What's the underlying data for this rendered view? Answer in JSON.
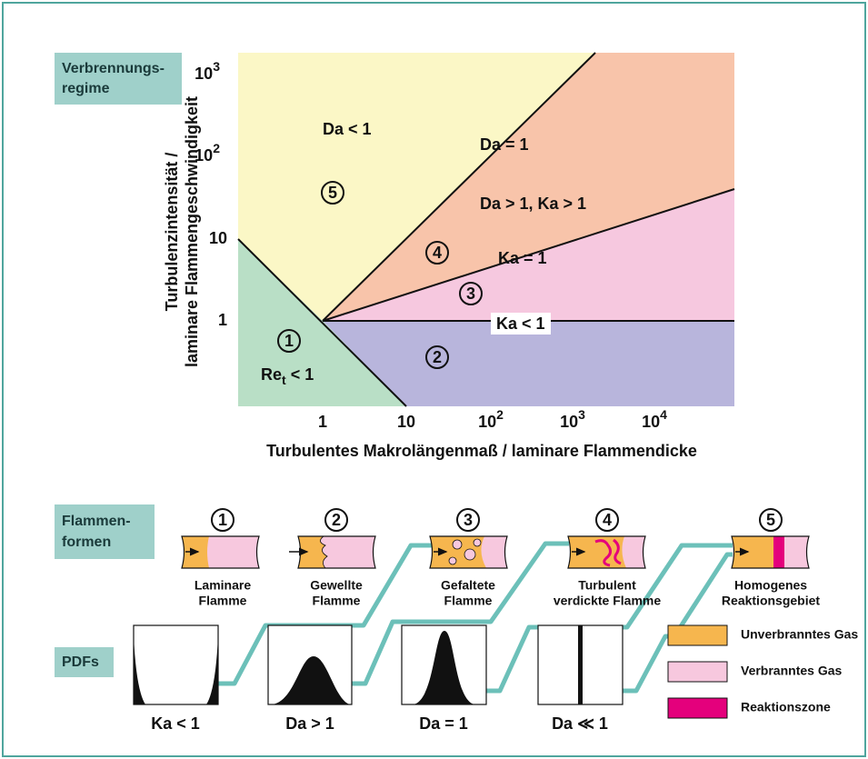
{
  "regime_diagram": {
    "label": [
      "Verbrennungs-",
      "regime"
    ],
    "y_axis_title": [
      "Turbulenzintensität /",
      "laminare Flammengeschwindigkeit"
    ],
    "x_axis_title": "Turbulentes Makrolängenmaß / laminare Flammendicke",
    "y_ticks": [
      {
        "base": "1"
      },
      {
        "base": "10"
      },
      {
        "base": "10",
        "sup": "2"
      },
      {
        "base": "10",
        "sup": "3"
      }
    ],
    "x_ticks": [
      {
        "base": "1"
      },
      {
        "base": "10"
      },
      {
        "base": "10",
        "sup": "2"
      },
      {
        "base": "10",
        "sup": "3"
      },
      {
        "base": "10",
        "sup": "4"
      }
    ],
    "region_labels": [
      "Da < 1",
      "Da = 1",
      "Da > 1, Ka > 1",
      "Ka = 1",
      "Ka < 1"
    ],
    "re_label": {
      "main": "Re",
      "sub": "t",
      "rest": " < 1"
    },
    "regimes": [
      "1",
      "2",
      "3",
      "4",
      "5"
    ]
  },
  "flame_forms": {
    "label": [
      "Flammen-",
      "formen"
    ],
    "items": [
      {
        "number": "1",
        "caption": [
          "Laminare",
          "Flamme"
        ]
      },
      {
        "number": "2",
        "caption": [
          "Gewellte",
          "Flamme"
        ]
      },
      {
        "number": "3",
        "caption": [
          "Gefaltete",
          "Flamme"
        ]
      },
      {
        "number": "4",
        "caption": [
          "Turbulent",
          "verdickte Flamme"
        ]
      },
      {
        "number": "5",
        "caption": [
          "Homogenes",
          "Reaktionsgebiet"
        ]
      }
    ]
  },
  "pdfs": {
    "label": "PDFs",
    "items": [
      "Ka < 1",
      "Da > 1",
      "Da = 1",
      "Da ≪ 1"
    ]
  },
  "legend": [
    "Unverbranntes Gas",
    "Verbranntes Gas",
    "Reaktionszone"
  ]
}
